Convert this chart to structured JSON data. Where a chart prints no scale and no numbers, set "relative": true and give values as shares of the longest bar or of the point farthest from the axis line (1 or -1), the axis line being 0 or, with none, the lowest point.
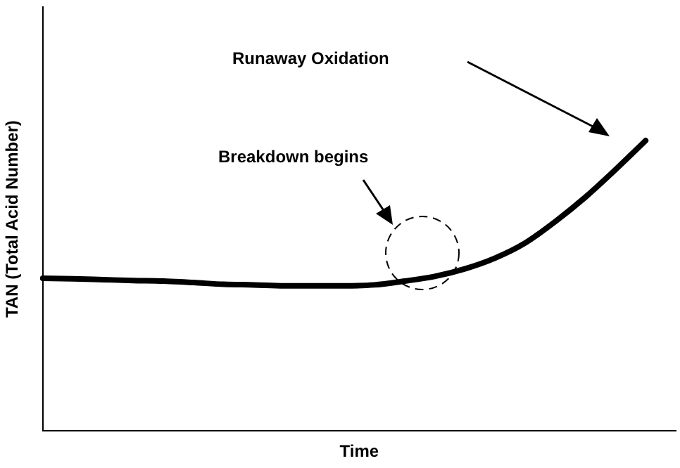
{
  "chart_data": {
    "type": "line",
    "relative": true,
    "xlabel": "Time",
    "ylabel": "TAN (Total Acid Number)",
    "categories": [
      null,
      null,
      null,
      null,
      null,
      null,
      null,
      null,
      null,
      null,
      null,
      null,
      null,
      null,
      null,
      null,
      null,
      null,
      null,
      null,
      null,
      null
    ],
    "series": [
      {
        "color": "#000000",
        "values": [
          0.526,
          0.524,
          0.521,
          0.518,
          0.516,
          0.511,
          0.505,
          0.503,
          0.5,
          0.5,
          0.5,
          0.503,
          0.516,
          0.532,
          0.558,
          0.595,
          0.647,
          0.721,
          0.805,
          0.9,
          1.0,
          null
        ]
      }
    ],
    "annotations": [
      "Runaway Oxidation",
      "Breakdown begins"
    ],
    "grid": false,
    "legend": false,
    "marker": "none",
    "line_style": "solid"
  }
}
